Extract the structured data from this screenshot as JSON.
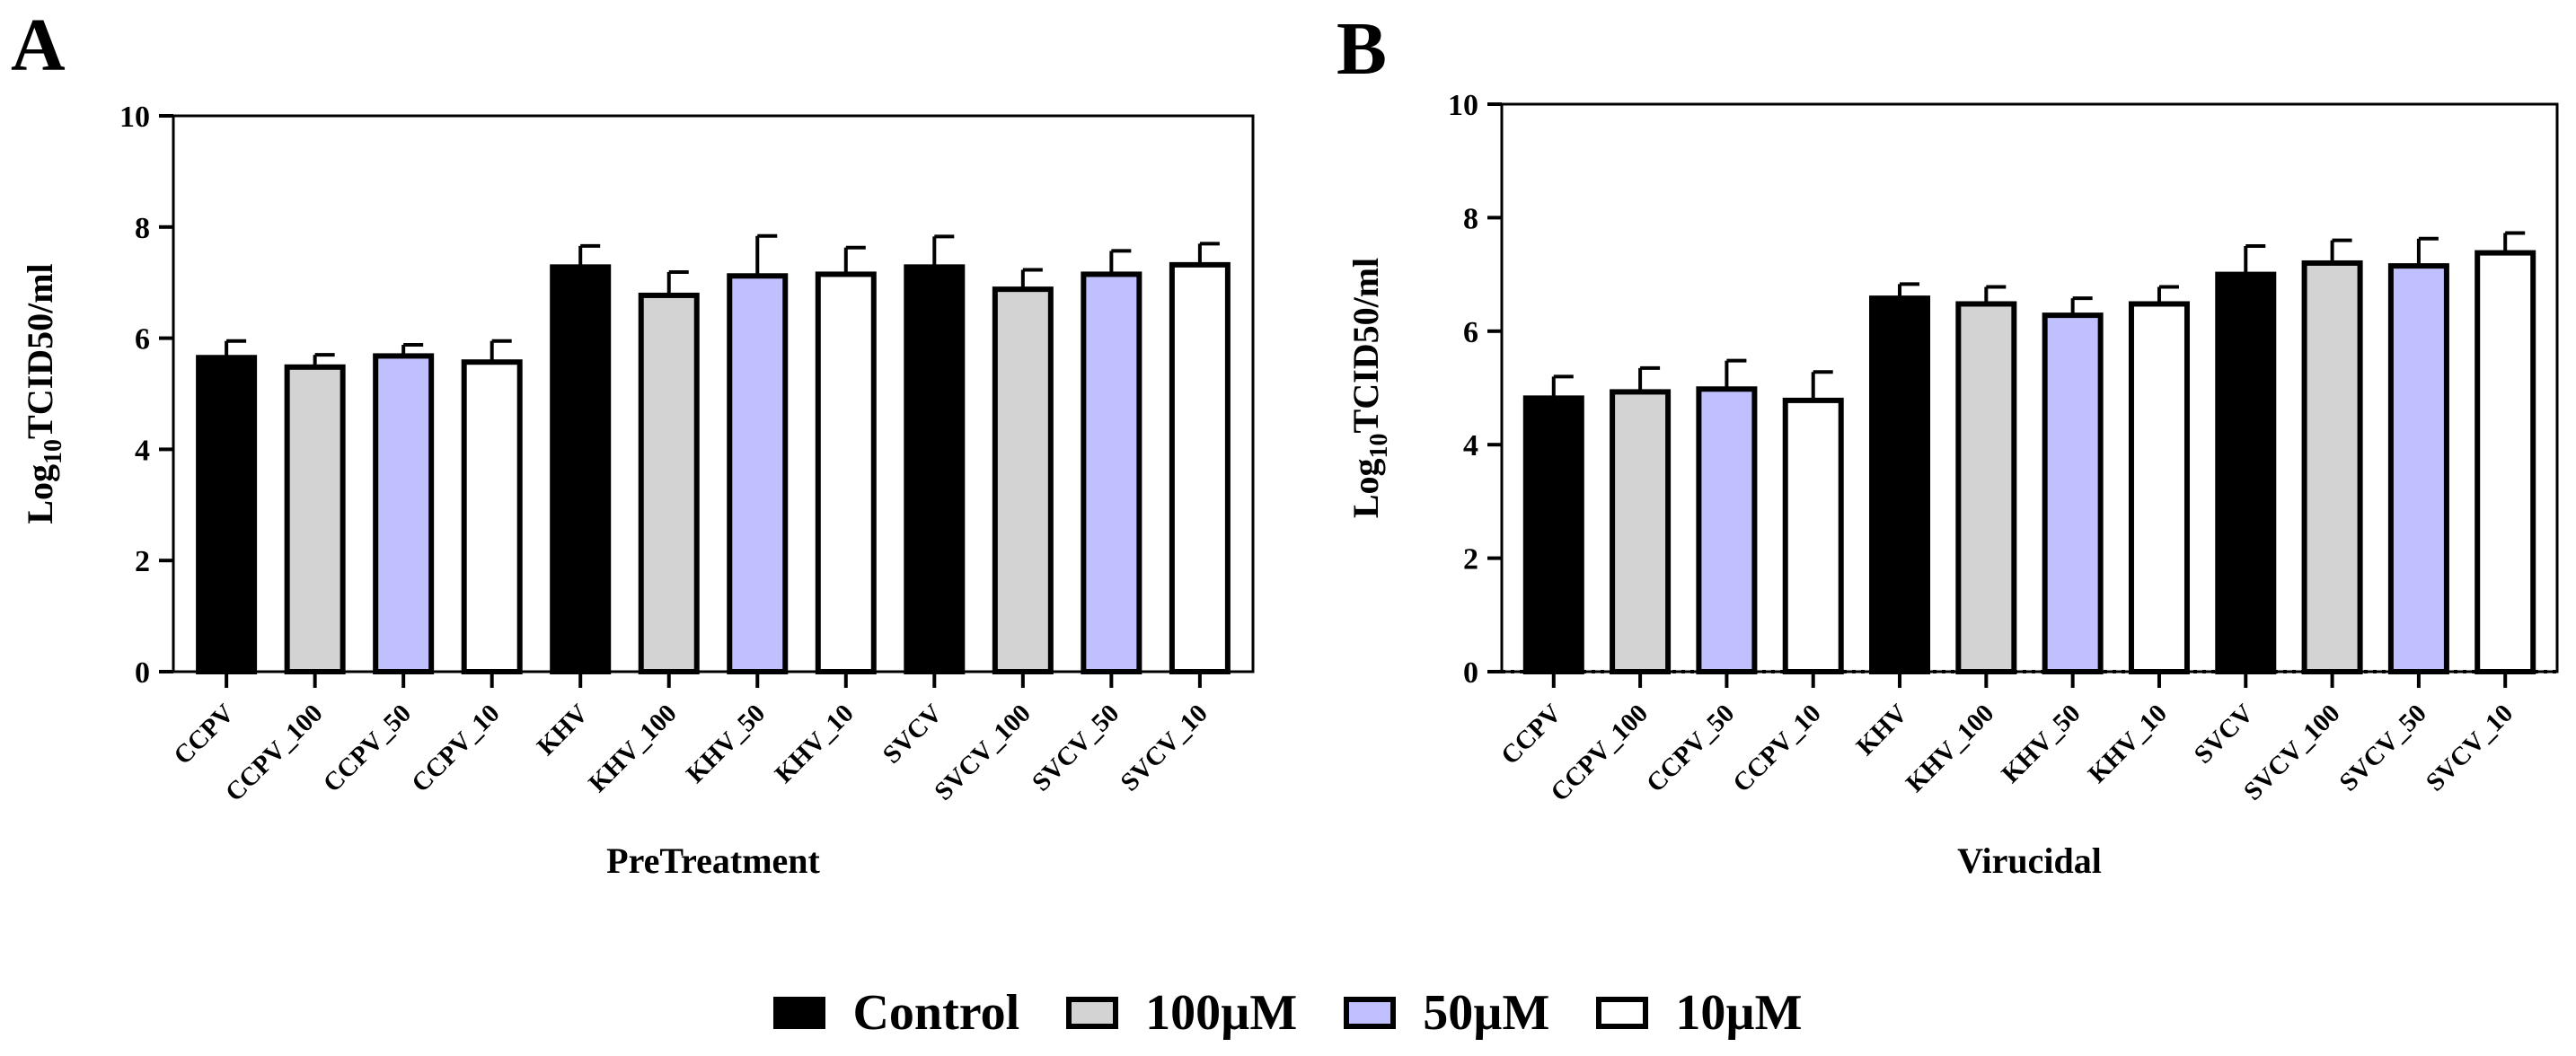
{
  "colors": {
    "Control": "#000000",
    "100µM": "#d3d3d3",
    "50µM": "#c0c0ff",
    "10µM": "#ffffff"
  },
  "legend": [
    {
      "name": "Control",
      "color": "#000000"
    },
    {
      "name": "100µM",
      "color": "#d3d3d3"
    },
    {
      "name": "50µM",
      "color": "#c0c0ff"
    },
    {
      "name": "10µM",
      "color": "#ffffff"
    }
  ],
  "chart_data": [
    {
      "type": "bar",
      "panel": "A",
      "title": "",
      "xlabel": "PreTreatment",
      "ylabel_main": "Log",
      "ylabel_sub": "10",
      "ylabel_rest": "TCID50/ml",
      "ylim": [
        0,
        10
      ],
      "yticks": [
        "0",
        "2",
        "4",
        "6",
        "8",
        "10"
      ],
      "categories": [
        "CCPV",
        "CCPV_100",
        "CCPV_50",
        "CCPV_10",
        "KHV",
        "KHV_100",
        "KHV_50",
        "KHV_10",
        "SVCV",
        "SVCV_100",
        "SVCV_50",
        "SVCV_10"
      ],
      "groups": [
        "Control",
        "100µM",
        "50µM",
        "10µM",
        "Control",
        "100µM",
        "50µM",
        "10µM",
        "Control",
        "100µM",
        "50µM",
        "10µM"
      ],
      "values": [
        5.65,
        5.48,
        5.68,
        5.57,
        7.28,
        6.77,
        7.12,
        7.15,
        7.28,
        6.88,
        7.15,
        7.32
      ],
      "errors": [
        0.3,
        0.22,
        0.2,
        0.38,
        0.38,
        0.42,
        0.72,
        0.48,
        0.55,
        0.35,
        0.42,
        0.38
      ],
      "zero_line_dotted": false
    },
    {
      "type": "bar",
      "panel": "B",
      "title": "",
      "xlabel": "Virucidal",
      "ylabel_main": "Log",
      "ylabel_sub": "10",
      "ylabel_rest": "TCID50/ml",
      "ylim": [
        0,
        10
      ],
      "yticks": [
        "0",
        "2",
        "4",
        "6",
        "8",
        "10"
      ],
      "categories": [
        "CCPV",
        "CCPV_100",
        "CCPV_50",
        "CCPV_10",
        "KHV",
        "KHV_100",
        "KHV_50",
        "KHV_10",
        "SVCV",
        "SVCV_100",
        "SVCV_50",
        "SVCV_10"
      ],
      "groups": [
        "Control",
        "100µM",
        "50µM",
        "10µM",
        "Control",
        "100µM",
        "50µM",
        "10µM",
        "Control",
        "100µM",
        "50µM",
        "10µM"
      ],
      "values": [
        4.82,
        4.93,
        4.98,
        4.78,
        6.58,
        6.48,
        6.28,
        6.48,
        7.0,
        7.2,
        7.15,
        7.38
      ],
      "errors": [
        0.38,
        0.42,
        0.5,
        0.5,
        0.25,
        0.3,
        0.3,
        0.3,
        0.5,
        0.4,
        0.48,
        0.35
      ],
      "zero_line_dotted": true
    }
  ]
}
